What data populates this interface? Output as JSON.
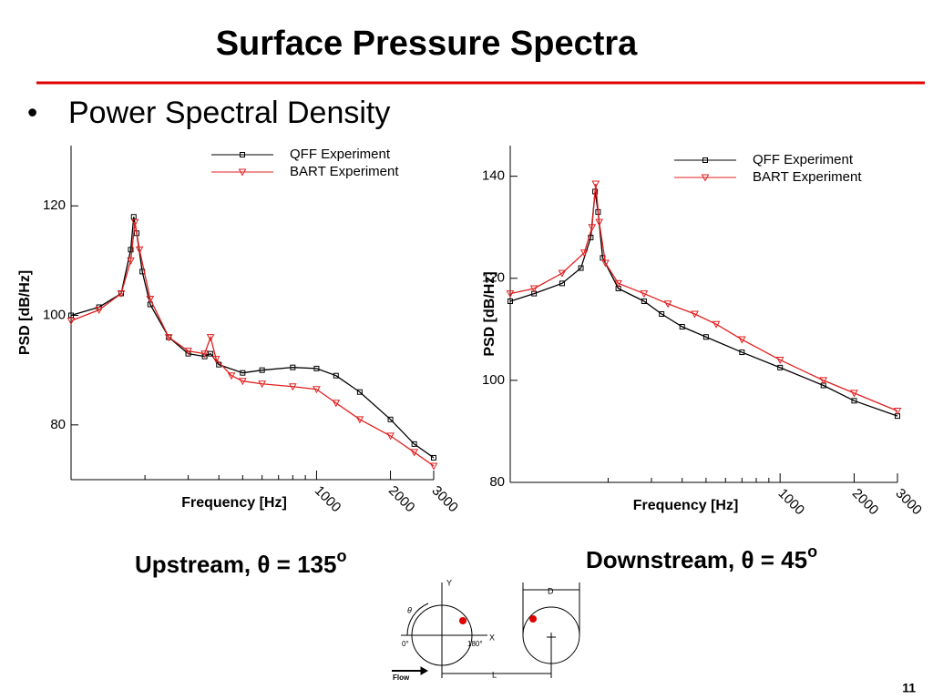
{
  "slide": {
    "title": "Surface Pressure Spectra",
    "bullet": "Power Spectral Density",
    "captions": [
      {
        "text": "Upstream, θ = 135",
        "sup": "o"
      },
      {
        "text": "Downstream, θ = 45",
        "sup": "o"
      }
    ],
    "page_number": "11"
  },
  "diagram": {
    "y_axis": "Y",
    "x_axis": "X",
    "theta": "θ",
    "zero": "0°",
    "one_eighty": "180°",
    "flow": "Flow",
    "diameter": "D",
    "length": "L"
  },
  "chart_data": [
    {
      "type": "line",
      "xlabel": "Frequency [Hz]",
      "ylabel": "PSD [dB/Hz]",
      "xscale": "log",
      "xlim": [
        100,
        3000
      ],
      "xticks": [
        1000,
        2000,
        3000
      ],
      "xminor_ticks": [
        200,
        300,
        400,
        500,
        600,
        700,
        800,
        900
      ],
      "ylim": [
        70,
        131
      ],
      "yticks": [
        80,
        100,
        120
      ],
      "legend": "upper right",
      "series": [
        {
          "name": "QFF Experiment",
          "color": "#000000",
          "marker": "square",
          "x": [
            100,
            130,
            160,
            175,
            180,
            185,
            195,
            210,
            250,
            300,
            350,
            370,
            400,
            500,
            600,
            800,
            1000,
            1200,
            1500,
            2000,
            2500,
            3000
          ],
          "values": [
            100,
            101.5,
            104,
            112,
            118,
            115,
            108,
            102,
            96,
            93,
            92.5,
            93,
            91,
            89.5,
            90,
            90.5,
            90.3,
            89,
            86,
            81,
            76.5,
            74
          ]
        },
        {
          "name": "BART Experiment",
          "color": "#e02020",
          "marker": "triangle-down",
          "x": [
            100,
            130,
            160,
            175,
            182,
            190,
            210,
            250,
            300,
            350,
            370,
            390,
            450,
            500,
            600,
            800,
            1000,
            1200,
            1500,
            2000,
            2500,
            3000
          ],
          "values": [
            99,
            101,
            104,
            110,
            117,
            112,
            103,
            96,
            93.5,
            93,
            96,
            92,
            89,
            88,
            87.5,
            87,
            86.5,
            84,
            81,
            78,
            75,
            72.5
          ]
        }
      ]
    },
    {
      "type": "line",
      "xlabel": "Frequency [Hz]",
      "ylabel": "PSD [dB/Hz]",
      "xscale": "log",
      "xlim": [
        80,
        3000
      ],
      "xticks": [
        1000,
        2000,
        3000
      ],
      "xminor_ticks": [
        200,
        300,
        400,
        500,
        600,
        700,
        800,
        900
      ],
      "ylim": [
        80,
        146
      ],
      "yticks": [
        80,
        100,
        120,
        140
      ],
      "legend": "upper right",
      "series": [
        {
          "name": "QFF Experiment",
          "color": "#000000",
          "marker": "square",
          "x": [
            80,
            100,
            130,
            155,
            170,
            177,
            182,
            190,
            220,
            280,
            330,
            400,
            500,
            700,
            1000,
            1500,
            2000,
            3000
          ],
          "values": [
            115.5,
            117,
            119,
            122,
            128,
            137,
            133,
            124,
            118,
            115.5,
            113,
            110.5,
            108.5,
            105.5,
            102.5,
            99,
            96,
            93
          ]
        },
        {
          "name": "BART Experiment",
          "color": "#e02020",
          "marker": "triangle-down",
          "x": [
            80,
            100,
            130,
            160,
            172,
            178,
            184,
            195,
            220,
            280,
            350,
            450,
            550,
            700,
            1000,
            1500,
            2000,
            3000
          ],
          "values": [
            117,
            118,
            121,
            125,
            130,
            138.5,
            131,
            123,
            119,
            117,
            115,
            113,
            111,
            108,
            104,
            100,
            97.5,
            94
          ]
        }
      ]
    }
  ]
}
